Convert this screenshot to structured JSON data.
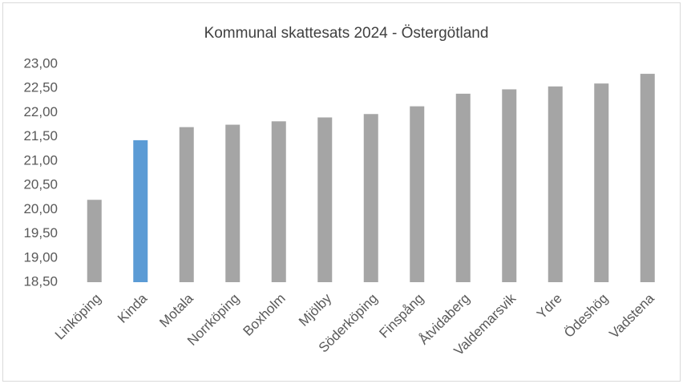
{
  "chart_data": {
    "type": "bar",
    "title": "Kommunal skattesats 2024 - Östergötland",
    "categories": [
      "Linköping",
      "Kinda",
      "Motala",
      "Norrköping",
      "Boxholm",
      "Mjölby",
      "Söderköping",
      "Finspång",
      "Åtvidaberg",
      "Valdemarsvik",
      "Ydre",
      "Ödeshög",
      "Vadstena"
    ],
    "values": [
      20.2,
      21.43,
      21.7,
      21.75,
      21.82,
      21.9,
      21.97,
      22.13,
      22.39,
      22.48,
      22.54,
      22.6,
      22.8
    ],
    "colors": [
      "#a5a5a5",
      "#5b9bd5",
      "#a5a5a5",
      "#a5a5a5",
      "#a5a5a5",
      "#a5a5a5",
      "#a5a5a5",
      "#a5a5a5",
      "#a5a5a5",
      "#a5a5a5",
      "#a5a5a5",
      "#a5a5a5",
      "#a5a5a5"
    ],
    "ylim": [
      18.5,
      23.0
    ],
    "yticks": [
      {
        "value": 18.5,
        "label": "18,50"
      },
      {
        "value": 19.0,
        "label": "19,00"
      },
      {
        "value": 19.5,
        "label": "19,50"
      },
      {
        "value": 20.0,
        "label": "20,00"
      },
      {
        "value": 20.5,
        "label": "20,50"
      },
      {
        "value": 21.0,
        "label": "21,00"
      },
      {
        "value": 21.5,
        "label": "21,50"
      },
      {
        "value": 22.0,
        "label": "22,00"
      },
      {
        "value": 22.5,
        "label": "22,50"
      },
      {
        "value": 23.0,
        "label": "23,00"
      }
    ],
    "grid": false
  }
}
